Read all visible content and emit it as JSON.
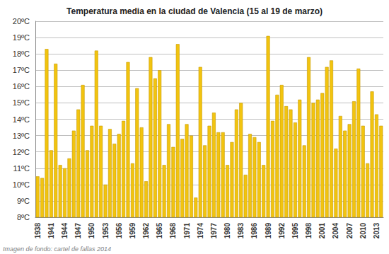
{
  "chart_data": {
    "type": "bar",
    "title": "Temperatura media en la ciudad de Valencia (15 al 19 de marzo)",
    "annotations": [
      "Imagen de fondo: cartel de fallas 2014"
    ],
    "categories": [
      "1938",
      null,
      null,
      "1941",
      null,
      null,
      "1944",
      null,
      null,
      "1947",
      null,
      null,
      "1950",
      null,
      null,
      "1953",
      null,
      null,
      "1956",
      null,
      null,
      "1959",
      null,
      null,
      "1962",
      null,
      null,
      "1965",
      null,
      null,
      "1968",
      null,
      null,
      "1971",
      null,
      null,
      "1974",
      null,
      null,
      "1977",
      null,
      null,
      "1980",
      null,
      null,
      "1983",
      null,
      null,
      "1986",
      null,
      null,
      "1989",
      null,
      null,
      "1992",
      null,
      null,
      "1995",
      null,
      null,
      "1998",
      null,
      null,
      "2001",
      null,
      null,
      "2004",
      null,
      null,
      "2007",
      null,
      null,
      "2010",
      null,
      null,
      "2013",
      null
    ],
    "values": [
      10.5,
      10.4,
      18.3,
      12.1,
      17.4,
      11.2,
      11.0,
      11.6,
      13.3,
      14.6,
      16.1,
      12.1,
      13.6,
      18.2,
      13.6,
      10.0,
      13.4,
      12.5,
      13.1,
      13.9,
      17.5,
      11.3,
      15.9,
      13.5,
      10.2,
      17.8,
      16.5,
      17.0,
      11.2,
      13.7,
      12.3,
      18.6,
      12.8,
      13.7,
      13.0,
      9.2,
      17.2,
      12.4,
      13.6,
      14.4,
      13.2,
      13.2,
      11.2,
      12.6,
      14.6,
      15.0,
      10.6,
      13.1,
      12.9,
      12.6,
      11.2,
      19.1,
      13.9,
      15.5,
      16.1,
      14.8,
      14.6,
      13.8,
      15.2,
      12.4,
      17.8,
      15.0,
      15.2,
      15.6,
      17.2,
      17.6,
      12.2,
      14.2,
      13.3,
      13.7,
      15.1,
      17.1,
      13.6,
      11.3,
      15.7,
      14.3,
      13.6
    ],
    "color": "#f2c40f",
    "ylim": [
      8,
      20
    ],
    "yticks": [
      {
        "value": 8,
        "label": "8ºC"
      },
      {
        "value": 9,
        "label": "9ºC"
      },
      {
        "value": 10,
        "label": "10ºC"
      },
      {
        "value": 11,
        "label": "11ºC"
      },
      {
        "value": 12,
        "label": "12ºC"
      },
      {
        "value": 13,
        "label": "13ºC"
      },
      {
        "value": 14,
        "label": "14ºC"
      },
      {
        "value": 15,
        "label": "15ºC"
      },
      {
        "value": 16,
        "label": "16ºC"
      },
      {
        "value": 17,
        "label": "17ºC"
      },
      {
        "value": 18,
        "label": "18ºC"
      },
      {
        "value": 19,
        "label": "19ºC"
      },
      {
        "value": 20,
        "label": "20ºC"
      }
    ],
    "grid": true
  }
}
